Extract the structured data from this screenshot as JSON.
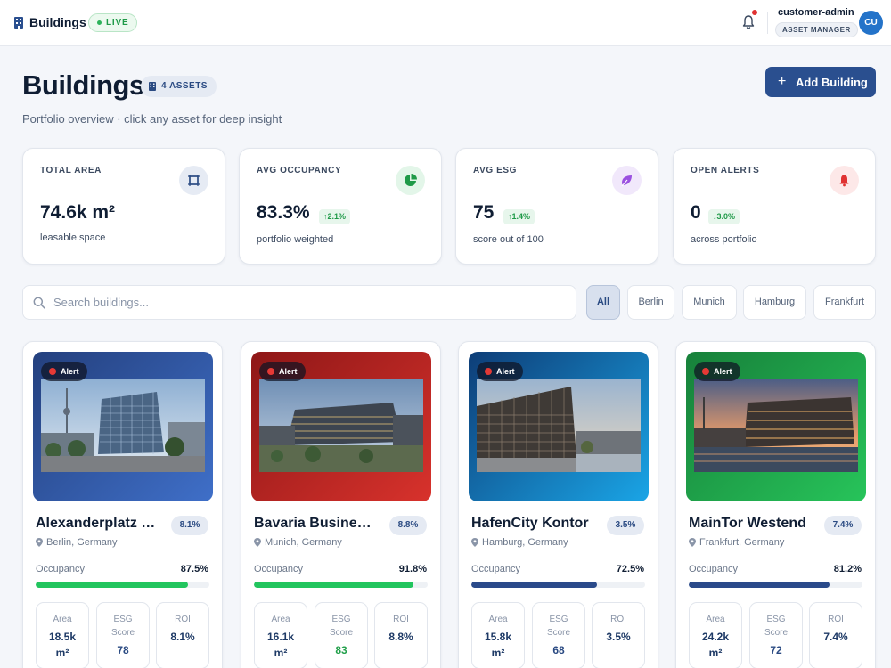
{
  "topbar": {
    "brand": "Buildings",
    "live": "LIVE",
    "username": "customer-admin",
    "role": "ASSET MANAGER",
    "avatar": "CU"
  },
  "header": {
    "title": "Buildings",
    "asset_count": "4 ASSETS",
    "subtitle": "Portfolio overview · click any asset for deep insight",
    "add_button": "Add Building"
  },
  "stats": [
    {
      "label": "TOTAL AREA",
      "value": "74.6k m²",
      "trend": "",
      "sub": "leasable space",
      "icon": "area-icon"
    },
    {
      "label": "AVG OCCUPANCY",
      "value": "83.3%",
      "trend": "↑2.1%",
      "sub": "portfolio weighted",
      "icon": "pie-chart-icon"
    },
    {
      "label": "AVG ESG",
      "value": "75",
      "trend": "↑1.4%",
      "sub": "score out of 100",
      "icon": "leaf-icon"
    },
    {
      "label": "OPEN ALERTS",
      "value": "0",
      "trend": "↓3.0%",
      "sub": "across portfolio",
      "icon": "bell-icon"
    }
  ],
  "search": {
    "placeholder": "Search buildings..."
  },
  "filters": [
    "All",
    "Berlin",
    "Munich",
    "Hamburg",
    "Frankfurt"
  ],
  "active_filter": "All",
  "buildings": [
    {
      "name": "Alexanderplatz Tower",
      "badge": "8.1%",
      "location": "Berlin, Germany",
      "alert": "Alert",
      "occupancy_label": "Occupancy",
      "occupancy": "87.5%",
      "occupancy_pct": 87.5,
      "area_label": "Area",
      "area": "18.5k m²",
      "esg_label": "ESG Score",
      "esg": "78",
      "roi_label": "ROI",
      "roi": "8.1%"
    },
    {
      "name": "Bavaria Business Park",
      "badge": "8.8%",
      "location": "Munich, Germany",
      "alert": "Alert",
      "occupancy_label": "Occupancy",
      "occupancy": "91.8%",
      "occupancy_pct": 91.8,
      "area_label": "Area",
      "area": "16.1k m²",
      "esg_label": "ESG Score",
      "esg": "83",
      "roi_label": "ROI",
      "roi": "8.8%"
    },
    {
      "name": "HafenCity Kontor",
      "badge": "3.5%",
      "location": "Hamburg, Germany",
      "alert": "Alert",
      "occupancy_label": "Occupancy",
      "occupancy": "72.5%",
      "occupancy_pct": 72.5,
      "area_label": "Area",
      "area": "15.8k m²",
      "esg_label": "ESG Score",
      "esg": "68",
      "roi_label": "ROI",
      "roi": "3.5%"
    },
    {
      "name": "MainTor Westend",
      "badge": "7.4%",
      "location": "Frankfurt, Germany",
      "alert": "Alert",
      "occupancy_label": "Occupancy",
      "occupancy": "81.2%",
      "occupancy_pct": 81.2,
      "area_label": "Area",
      "area": "24.2k m²",
      "esg_label": "ESG Score",
      "esg": "72",
      "roi_label": "ROI",
      "roi": "7.4%"
    }
  ],
  "colors": {
    "primary": "#2a4f8f",
    "success": "#22c55e",
    "occupancy_high": "#22c55e",
    "occupancy_low": "#2a4a8a",
    "esg_high": "#22a04b",
    "alert_red": "#e53935"
  }
}
